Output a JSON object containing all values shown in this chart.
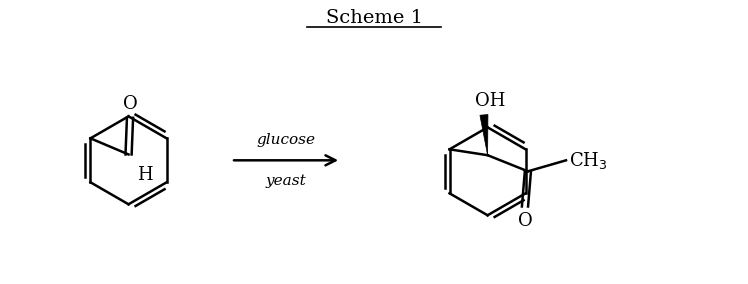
{
  "title": "Scheme 1",
  "title_fontsize": 14,
  "arrow_label_line1": "glucose",
  "arrow_label_line2": "yeast",
  "background_color": "#ffffff",
  "line_color": "#000000",
  "lw": 1.8,
  "fig_width": 7.48,
  "fig_height": 2.84,
  "dpi": 100
}
